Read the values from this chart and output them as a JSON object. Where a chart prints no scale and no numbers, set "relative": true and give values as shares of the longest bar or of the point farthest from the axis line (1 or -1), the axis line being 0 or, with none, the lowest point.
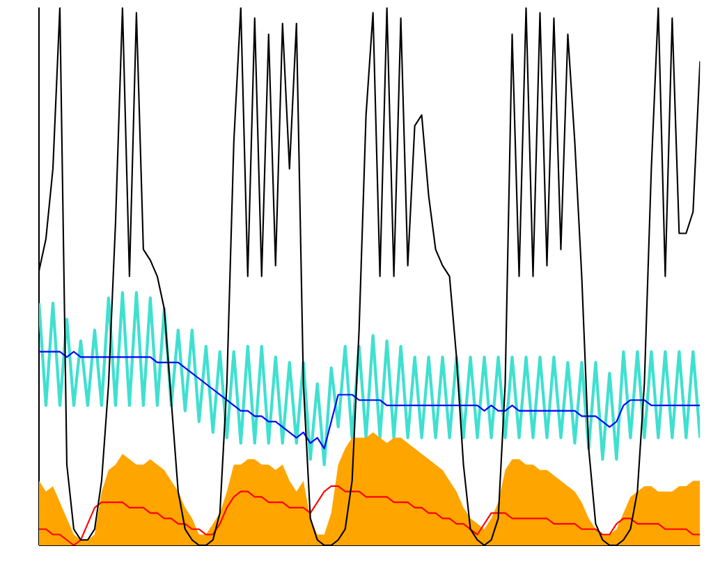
{
  "chart_data": {
    "type": "line",
    "relative": true,
    "categories": [
      null,
      null,
      null,
      null,
      null,
      null,
      null,
      null,
      null,
      null,
      null,
      null,
      null,
      null,
      null,
      null,
      null,
      null,
      null,
      null,
      null,
      null,
      null,
      null,
      null,
      null,
      null,
      null,
      null,
      null,
      null,
      null,
      null,
      null,
      null,
      null,
      null,
      null,
      null,
      null,
      null,
      null,
      null,
      null,
      null,
      null,
      null,
      null,
      null,
      null,
      null,
      null,
      null,
      null,
      null,
      null,
      null,
      null,
      null,
      null,
      null,
      null,
      null,
      null,
      null,
      null,
      null,
      null,
      null,
      null,
      null,
      null,
      null,
      null,
      null,
      null,
      null,
      null,
      null,
      null,
      null,
      null,
      null,
      null,
      null,
      null,
      null,
      null,
      null,
      null,
      null,
      null,
      null,
      null,
      null,
      null
    ],
    "series": [
      {
        "color": "#40e0d0",
        "values": [
          0.45,
          0.26,
          0.45,
          0.26,
          0.42,
          0.26,
          0.38,
          0.26,
          0.4,
          0.26,
          0.46,
          0.26,
          0.47,
          0.26,
          0.47,
          0.26,
          0.46,
          0.26,
          0.44,
          0.26,
          0.4,
          0.25,
          0.4,
          0.23,
          0.37,
          0.21,
          0.36,
          0.2,
          0.36,
          0.19,
          0.37,
          0.19,
          0.37,
          0.19,
          0.35,
          0.19,
          0.34,
          0.19,
          0.34,
          0.16,
          0.3,
          0.15,
          0.33,
          0.22,
          0.37,
          0.2,
          0.37,
          0.2,
          0.39,
          0.2,
          0.38,
          0.2,
          0.37,
          0.2,
          0.35,
          0.2,
          0.35,
          0.2,
          0.35,
          0.2,
          0.35,
          0.2,
          0.35,
          0.2,
          0.35,
          0.2,
          0.35,
          0.2,
          0.35,
          0.2,
          0.35,
          0.2,
          0.35,
          0.2,
          0.35,
          0.2,
          0.34,
          0.19,
          0.34,
          0.18,
          0.34,
          0.16,
          0.32,
          0.16,
          0.36,
          0.2,
          0.36,
          0.2,
          0.36,
          0.2,
          0.36,
          0.2,
          0.36,
          0.2,
          0.36,
          0.2
        ]
      },
      {
        "type": "area",
        "color": "#ffa500",
        "values": [
          0.12,
          0.1,
          0.11,
          0.08,
          0.05,
          0.02,
          0.01,
          0.01,
          0.02,
          0.1,
          0.14,
          0.15,
          0.17,
          0.16,
          0.15,
          0.15,
          0.16,
          0.15,
          0.14,
          0.12,
          0.1,
          0.07,
          0.05,
          0.02,
          0.02,
          0.04,
          0.06,
          0.1,
          0.15,
          0.15,
          0.16,
          0.16,
          0.15,
          0.15,
          0.14,
          0.15,
          0.12,
          0.1,
          0.12,
          0.05,
          0.02,
          0.02,
          0.06,
          0.15,
          0.18,
          0.2,
          0.2,
          0.2,
          0.21,
          0.2,
          0.19,
          0.2,
          0.2,
          0.19,
          0.18,
          0.17,
          0.16,
          0.15,
          0.14,
          0.12,
          0.1,
          0.07,
          0.05,
          0.04,
          0.03,
          0.05,
          0.08,
          0.14,
          0.16,
          0.16,
          0.15,
          0.15,
          0.14,
          0.14,
          0.13,
          0.12,
          0.11,
          0.1,
          0.08,
          0.05,
          0.03,
          0.02,
          0.02,
          0.03,
          0.06,
          0.09,
          0.1,
          0.11,
          0.11,
          0.1,
          0.1,
          0.1,
          0.11,
          0.11,
          0.12,
          0.12
        ]
      },
      {
        "color": "#0000ff",
        "values": [
          0.36,
          0.36,
          0.36,
          0.36,
          0.35,
          0.36,
          0.35,
          0.35,
          0.35,
          0.35,
          0.35,
          0.35,
          0.35,
          0.35,
          0.35,
          0.35,
          0.35,
          0.34,
          0.34,
          0.34,
          0.34,
          0.33,
          0.32,
          0.31,
          0.3,
          0.29,
          0.28,
          0.27,
          0.26,
          0.25,
          0.25,
          0.24,
          0.24,
          0.23,
          0.23,
          0.22,
          0.21,
          0.2,
          0.21,
          0.19,
          0.2,
          0.18,
          0.23,
          0.28,
          0.28,
          0.28,
          0.27,
          0.27,
          0.27,
          0.27,
          0.26,
          0.26,
          0.26,
          0.26,
          0.26,
          0.26,
          0.26,
          0.26,
          0.26,
          0.26,
          0.26,
          0.26,
          0.26,
          0.26,
          0.25,
          0.26,
          0.25,
          0.25,
          0.26,
          0.25,
          0.25,
          0.25,
          0.25,
          0.25,
          0.25,
          0.25,
          0.25,
          0.25,
          0.24,
          0.24,
          0.24,
          0.23,
          0.22,
          0.23,
          0.26,
          0.27,
          0.27,
          0.27,
          0.26,
          0.26,
          0.26,
          0.26,
          0.26,
          0.26,
          0.26,
          0.26
        ]
      },
      {
        "color": "#ff0000",
        "values": [
          0.03,
          0.03,
          0.02,
          0.02,
          0.01,
          0.0,
          0.01,
          0.04,
          0.07,
          0.08,
          0.08,
          0.08,
          0.08,
          0.07,
          0.07,
          0.07,
          0.06,
          0.06,
          0.05,
          0.05,
          0.04,
          0.04,
          0.03,
          0.03,
          0.02,
          0.02,
          0.04,
          0.07,
          0.09,
          0.1,
          0.1,
          0.09,
          0.09,
          0.08,
          0.08,
          0.08,
          0.07,
          0.07,
          0.07,
          0.06,
          0.08,
          0.1,
          0.11,
          0.11,
          0.1,
          0.1,
          0.1,
          0.09,
          0.09,
          0.09,
          0.09,
          0.08,
          0.08,
          0.08,
          0.07,
          0.07,
          0.06,
          0.06,
          0.05,
          0.05,
          0.04,
          0.04,
          0.03,
          0.02,
          0.04,
          0.06,
          0.06,
          0.06,
          0.05,
          0.05,
          0.05,
          0.05,
          0.05,
          0.05,
          0.04,
          0.04,
          0.04,
          0.04,
          0.03,
          0.03,
          0.03,
          0.02,
          0.02,
          0.04,
          0.05,
          0.05,
          0.04,
          0.04,
          0.04,
          0.04,
          0.03,
          0.03,
          0.03,
          0.03,
          0.02,
          0.02
        ]
      },
      {
        "color": "#000000",
        "values": [
          0.51,
          0.57,
          0.7,
          1.0,
          0.15,
          0.03,
          0.01,
          0.01,
          0.03,
          0.12,
          0.3,
          0.6,
          1.0,
          0.5,
          0.99,
          0.55,
          0.53,
          0.5,
          0.44,
          0.27,
          0.1,
          0.03,
          0.01,
          0.0,
          0.0,
          0.01,
          0.06,
          0.3,
          0.75,
          1.0,
          0.5,
          0.98,
          0.5,
          0.95,
          0.52,
          0.97,
          0.7,
          0.97,
          0.3,
          0.05,
          0.01,
          0.0,
          0.0,
          0.01,
          0.03,
          0.12,
          0.4,
          0.8,
          0.99,
          0.5,
          1.0,
          0.5,
          0.98,
          0.52,
          0.78,
          0.8,
          0.65,
          0.55,
          0.52,
          0.5,
          0.35,
          0.15,
          0.03,
          0.01,
          0.0,
          0.01,
          0.05,
          0.3,
          0.95,
          0.5,
          1.0,
          0.5,
          0.99,
          0.52,
          0.98,
          0.55,
          0.95,
          0.75,
          0.5,
          0.18,
          0.04,
          0.01,
          0.0,
          0.0,
          0.01,
          0.03,
          0.1,
          0.3,
          0.7,
          1.0,
          0.5,
          0.98,
          0.58,
          0.58,
          0.62,
          0.9
        ]
      }
    ]
  }
}
